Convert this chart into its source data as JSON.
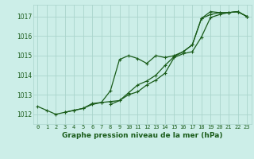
{
  "title": "Graphe pression niveau de la mer (hPa)",
  "background_color": "#cceee8",
  "grid_color": "#aad4cc",
  "line_color": "#1a5c1a",
  "x_labels": [
    "0",
    "1",
    "2",
    "3",
    "4",
    "5",
    "6",
    "7",
    "8",
    "9",
    "10",
    "11",
    "12",
    "13",
    "14",
    "15",
    "16",
    "17",
    "18",
    "19",
    "20",
    "21",
    "22",
    "23"
  ],
  "ylim": [
    1011.5,
    1017.6
  ],
  "yticks": [
    1012,
    1013,
    1014,
    1015,
    1016,
    1017
  ],
  "line1": [
    1012.4,
    1012.2,
    1012.0,
    1012.1,
    1012.2,
    1012.3,
    1012.5,
    1012.6,
    1013.2,
    1014.8,
    1015.0,
    1014.85,
    1014.6,
    1015.0,
    1014.9,
    1015.0,
    1015.2,
    1015.55,
    1016.9,
    1017.25,
    1017.2,
    1017.2,
    1017.25,
    1017.0
  ],
  "line2": [
    null,
    null,
    null,
    1012.1,
    1012.2,
    1012.3,
    1012.55,
    1012.6,
    1012.65,
    1012.7,
    1013.1,
    1013.5,
    1013.7,
    1014.0,
    1014.5,
    1014.95,
    1015.2,
    1015.55,
    1016.9,
    1017.1,
    1017.2,
    1017.2,
    1017.25,
    1017.0
  ],
  "line3": [
    null,
    null,
    null,
    null,
    null,
    null,
    null,
    null,
    1012.5,
    1012.7,
    1013.0,
    1013.15,
    1013.5,
    1013.75,
    1014.1,
    1014.9,
    1015.1,
    1015.2,
    1015.95,
    1016.95,
    1017.1,
    1017.2,
    1017.25,
    1017.0
  ],
  "figsize": [
    3.2,
    2.0
  ],
  "dpi": 100,
  "title_fontsize": 6.5,
  "tick_fontsize": 5.5,
  "xtick_fontsize": 5.0,
  "linewidth": 0.9,
  "markersize": 3.0
}
